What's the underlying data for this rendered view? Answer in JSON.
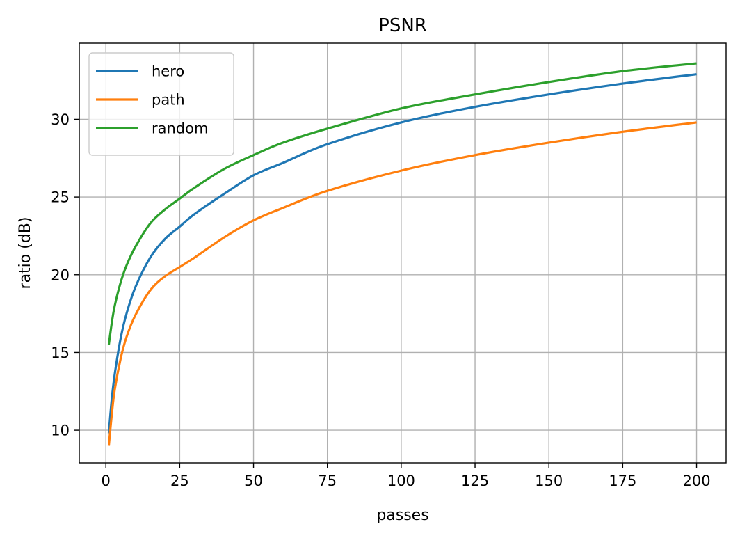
{
  "chart_data": {
    "type": "line",
    "title": "PSNR",
    "xlabel": "passes",
    "ylabel": "ratio (dB)",
    "xlim": [
      -9,
      210
    ],
    "ylim": [
      7.9,
      34.9
    ],
    "xticks": [
      0,
      25,
      50,
      75,
      100,
      125,
      150,
      175,
      200
    ],
    "yticks": [
      10,
      15,
      20,
      25,
      30
    ],
    "grid": true,
    "legend_position": "top-left",
    "x": [
      1,
      2,
      3,
      5,
      7,
      10,
      15,
      20,
      25,
      30,
      40,
      50,
      60,
      75,
      100,
      125,
      150,
      175,
      200
    ],
    "series": [
      {
        "name": "hero",
        "color": "#1f77b4",
        "values": [
          9.8,
          12.0,
          13.6,
          15.9,
          17.5,
          19.2,
          21.1,
          22.3,
          23.1,
          23.9,
          25.2,
          26.4,
          27.2,
          28.4,
          29.8,
          30.8,
          31.6,
          32.3,
          32.9
        ]
      },
      {
        "name": "path",
        "color": "#ff7f0e",
        "values": [
          9.0,
          11.0,
          12.6,
          14.6,
          16.0,
          17.4,
          19.0,
          19.9,
          20.5,
          21.1,
          22.4,
          23.5,
          24.3,
          25.4,
          26.7,
          27.7,
          28.5,
          29.2,
          29.8
        ]
      },
      {
        "name": "random",
        "color": "#2ca02c",
        "values": [
          15.5,
          16.9,
          18.0,
          19.5,
          20.6,
          21.8,
          23.3,
          24.2,
          24.9,
          25.6,
          26.8,
          27.7,
          28.5,
          29.4,
          30.7,
          31.6,
          32.4,
          33.1,
          33.6
        ]
      }
    ]
  }
}
